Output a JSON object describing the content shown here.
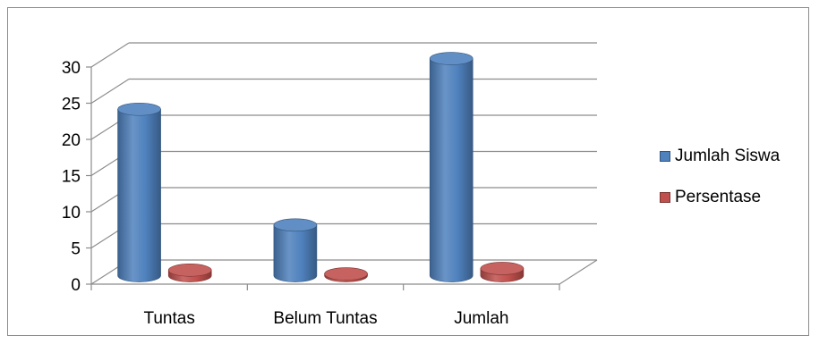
{
  "chart_data": {
    "type": "bar",
    "title": "",
    "xlabel": "",
    "ylabel": "",
    "categories": [
      "Tuntas",
      "Belum Tuntas",
      "Jumlah"
    ],
    "series": [
      {
        "name": "Jumlah Siswa",
        "values": [
          23,
          7,
          30
        ],
        "color": "#4f81bd"
      },
      {
        "name": "Persentase",
        "values": [
          0.77,
          0.23,
          1
        ],
        "color": "#c0504d"
      }
    ],
    "ylim": [
      0,
      30
    ],
    "yticks": [
      0,
      5,
      10,
      15,
      20,
      25,
      30
    ],
    "grid": true,
    "legend_position": "right",
    "style": "3d-cylinder"
  }
}
